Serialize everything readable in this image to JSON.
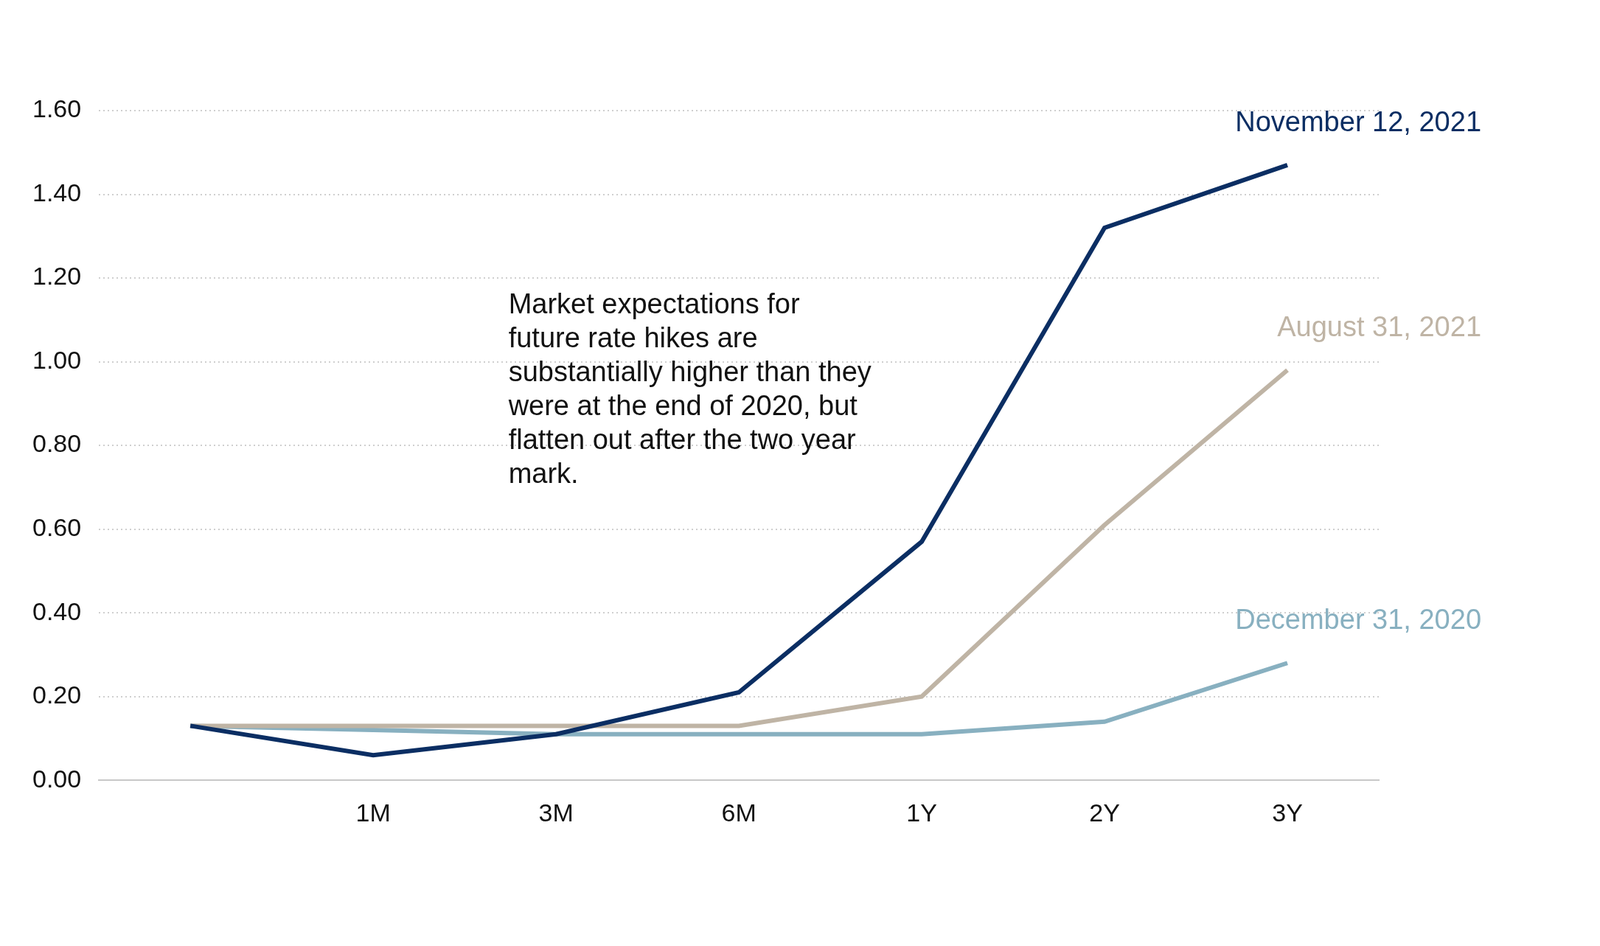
{
  "chart_data": {
    "type": "line",
    "annotation": "Market expectations for future rate hikes are substantially higher than they were at the end of 2020, but flatten out after the two year mark.",
    "categories": [
      null,
      "1M",
      "3M",
      "6M",
      "1Y",
      "2Y",
      "3Y"
    ],
    "series": [
      {
        "name": "November 12, 2021",
        "color": "#0b2e63",
        "values": [
          0.13,
          0.06,
          0.11,
          0.21,
          0.57,
          1.32,
          1.47
        ]
      },
      {
        "name": "August 31, 2021",
        "color": "#bfb4a5",
        "values": [
          0.13,
          0.13,
          0.13,
          0.13,
          0.2,
          0.61,
          0.98
        ]
      },
      {
        "name": "December 31, 2020",
        "color": "#88b0c0",
        "values": [
          0.13,
          0.12,
          0.11,
          0.11,
          0.11,
          0.14,
          0.28
        ]
      }
    ],
    "ylim": [
      0,
      1.6
    ],
    "yticks": [
      {
        "value": 0,
        "label": "0.00"
      },
      {
        "value": 0.2,
        "label": "0.20"
      },
      {
        "value": 0.4,
        "label": "0.40"
      },
      {
        "value": 0.6,
        "label": "0.60"
      },
      {
        "value": 0.8,
        "label": "0.80"
      },
      {
        "value": 1.0,
        "label": "1.00"
      },
      {
        "value": 1.2,
        "label": "1.20"
      },
      {
        "value": 1.4,
        "label": "1.40"
      },
      {
        "value": 1.6,
        "label": "1.60"
      }
    ],
    "grid": true,
    "legend": "none"
  }
}
